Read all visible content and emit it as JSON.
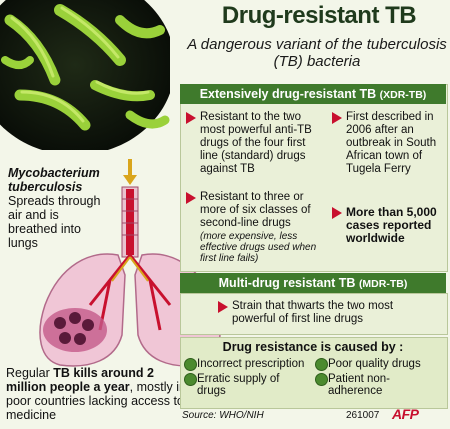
{
  "title": "Drug-resistant TB",
  "subtitle": "A dangerous variant of the tuberculosis (TB) bacteria",
  "xdr": {
    "heading": "Extensively drug-resistant TB",
    "abbr": "(XDR-TB)",
    "bullet1": "Resistant to the two most powerful anti-TB drugs of the four first line (standard) drugs against TB",
    "bullet2": "Resistant to three or more of six classes of second-line drugs",
    "bullet2_note": "(more expensive, less effective drugs used when first line fails)",
    "bullet3": "First described in 2006 after an outbreak in South African town of Tugela Ferry",
    "bullet4": "More than 5,000 cases reported worldwide"
  },
  "mdr": {
    "heading": "Multi-drug resistant TB",
    "abbr": "(MDR-TB)",
    "bullet": "Strain that thwarts the two most powerful of first line drugs"
  },
  "causes": {
    "heading": "Drug resistance is caused by :",
    "items": [
      "Incorrect prescription",
      "Poor quality drugs",
      "Erratic supply of drugs",
      "Patient non-adherence"
    ]
  },
  "left": {
    "species": "Mycobacterium tuberculosis",
    "desc": "Spreads through air and is breathed into lungs"
  },
  "bottom": {
    "pre": "Regular ",
    "bold": "TB kills around 2 million people a year",
    "post": ", mostly in poor countries lacking access to medicine"
  },
  "source": "Source: WHO/NIH",
  "code": "261007",
  "agency": "AFP",
  "colors": {
    "header_green": "#3f7a2c",
    "bullet_red": "#c8102e",
    "panel_bg": "#eaf0d8"
  }
}
